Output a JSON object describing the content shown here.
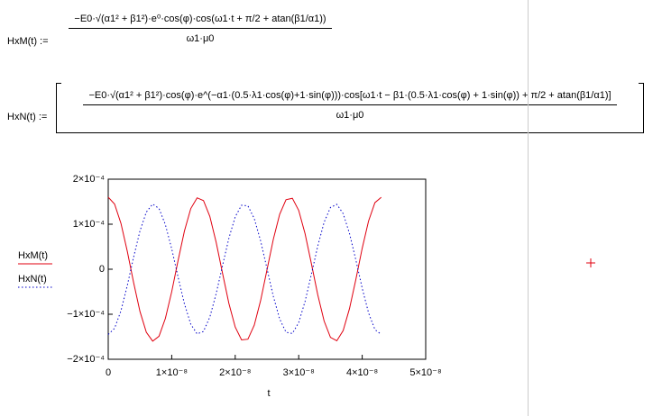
{
  "formulas": [
    {
      "lhs": "HxM(t) :=",
      "numerator": "−E0·√(α1² + β1²)·e⁰·cos(φ)·cos(ω1·t + π/2 + atan(β1/α1))",
      "denominator": "ω1·μ0"
    },
    {
      "lhs": "HxN(t) :=",
      "numerator": "−E0·√(α1² + β1²)·cos(φ)·e^(−α1·(0.5·λ1·cos(φ)+1·sin(φ)))·cos[ω1·t − β1·(0.5·λ1·cos(φ) + 1·sin(φ)) + π/2 + atan(β1/α1)]",
      "denominator": "ω1·μ0"
    }
  ],
  "chart_data": {
    "type": "line",
    "x_label": "t",
    "x": [
      0,
      1e-09,
      2e-09,
      3e-09,
      4e-09,
      5e-09,
      6e-09,
      7e-09,
      8e-09,
      9e-09,
      1e-08,
      1.1e-08,
      1.2e-08,
      1.3e-08,
      1.4e-08,
      1.5e-08,
      1.6e-08,
      1.7e-08,
      1.8e-08,
      1.9e-08,
      2e-08,
      2.1e-08,
      2.2e-08,
      2.3e-08,
      2.4e-08,
      2.5e-08,
      2.6e-08,
      2.7e-08,
      2.8e-08,
      2.9e-08,
      3e-08,
      3.1e-08,
      3.2e-08,
      3.3e-08,
      3.4e-08,
      3.5e-08,
      3.6e-08,
      3.7e-08,
      3.8e-08,
      3.9e-08,
      4e-08,
      4.1e-08,
      4.2e-08,
      4.3e-08
    ],
    "series": [
      {
        "name": "HxM(t)",
        "color": "#e0000f",
        "style": "solid",
        "values": [
          0.00016,
          0.0001448,
          0.0001021,
          4e-05,
          -2.98e-05,
          -9.39e-05,
          -0.00014,
          -0.0001597,
          -0.0001488,
          -0.0001093,
          -4.99e-05,
          1.92e-05,
          8.48e-05,
          0.0001347,
          0.0001586,
          0.0001525,
          0.0001174,
          5.98e-05,
          -8.8e-06,
          -7.58e-05,
          -0.0001285,
          -0.000157,
          -0.0001554,
          -0.0001242,
          -6.96e-05,
          -1.8e-06,
          6.64e-05,
          0.0001219,
          0.0001544,
          0.0001576,
          0.0001307,
          7.89e-05,
          1.23e-05,
          -5.68e-05,
          -0.000115,
          -0.0001514,
          -0.000159,
          -0.0001363,
          -8.74e-05,
          -2.27e-05,
          4.66e-05,
          0.000107,
          0.0001478,
          0.0001598
        ]
      },
      {
        "name": "HxN(t)",
        "color": "#0000c8",
        "style": "dotted",
        "values": [
          -0.000145,
          -0.0001312,
          -9.25e-05,
          -3.63e-05,
          2.7e-05,
          8.51e-05,
          0.0001269,
          0.0001447,
          0.0001349,
          9.9e-05,
          4.52e-05,
          -1.74e-05,
          -7.69e-05,
          -0.0001221,
          -0.0001437,
          -0.0001382,
          -0.0001064,
          -5.42e-05,
          8e-06,
          6.87e-05,
          0.0001164,
          0.0001422,
          0.0001408,
          0.0001125,
          6.31e-05,
          1.6e-06,
          -6.02e-05,
          -0.0001105,
          -0.0001399,
          -0.0001428,
          -0.0001185,
          -7.15e-05,
          -1.12e-05,
          5.15e-05,
          0.0001043,
          0.0001372,
          0.0001441,
          0.0001235,
          7.92e-05,
          2.06e-05,
          -4.22e-05,
          -9.7e-05,
          -0.000134,
          -0.0001449
        ]
      }
    ],
    "xlim": [
      0,
      5e-08
    ],
    "xticks": [
      0,
      {
        "value": 1e-08,
        "label": "1×10⁻⁸"
      },
      {
        "value": 2e-08,
        "label": "2×10⁻⁸"
      },
      {
        "value": 3e-08,
        "label": "3×10⁻⁸"
      },
      {
        "value": 4e-08,
        "label": "4×10⁻⁸"
      },
      {
        "value": 5e-08,
        "label": "5×10⁻⁸"
      }
    ],
    "ylim": [
      -0.0002,
      0.0002
    ],
    "yticks": [
      {
        "value": -0.0002,
        "label": "−2×10⁻⁴"
      },
      {
        "value": -0.0001,
        "label": "−1×10⁻⁴"
      },
      0,
      {
        "value": 0.0001,
        "label": "1×10⁻⁴"
      },
      {
        "value": 0.0002,
        "label": "2×10⁻⁴"
      }
    ],
    "grid": false
  }
}
